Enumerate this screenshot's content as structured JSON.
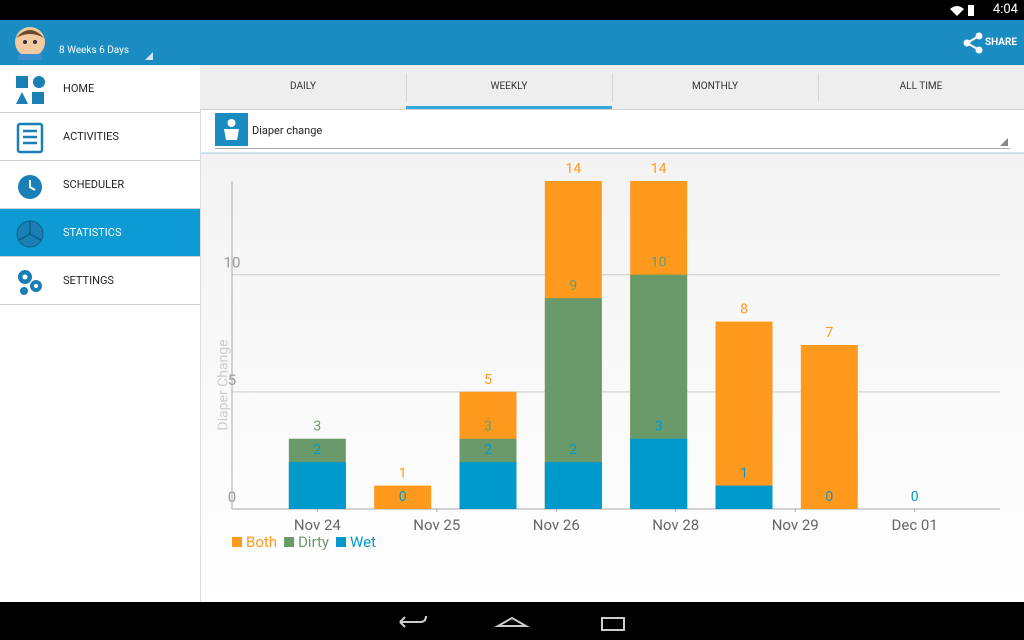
{
  "status_bar": {
    "time": "4:04"
  },
  "action_bar": {
    "subtitle": "8 Weeks 6 Days",
    "share": "SHARE"
  },
  "menu": {
    "items": [
      "HOME",
      "ACTIVITIES",
      "SCHEDULER",
      "STATISTICS",
      "SETTINGS"
    ],
    "selected": 3
  },
  "tabs": {
    "items": [
      "DAILY",
      "WEEKLY",
      "MONTHLY",
      "ALL TIME"
    ],
    "selected": 1
  },
  "dropdown": {
    "label": "Diaper change"
  },
  "chart_data": {
    "type": "bar",
    "y_label": "Diaper Change",
    "x": [
      0,
      1,
      2,
      3,
      4,
      5,
      6,
      7
    ],
    "xlim": [
      -1,
      8
    ],
    "xticks": [
      {
        "value": 0,
        "label": "Nov 24"
      },
      {
        "value": 1.4,
        "label": "Nov 25"
      },
      {
        "value": 2.8,
        "label": "Nov 26"
      },
      {
        "value": 4.2,
        "label": "Nov 28"
      },
      {
        "value": 5.6,
        "label": "Nov 29"
      },
      {
        "value": 7,
        "label": "Dec 01"
      }
    ],
    "ylim": [
      0,
      14
    ],
    "yticks": [
      0,
      5,
      10
    ],
    "grid": true,
    "legend": "bottom-left",
    "series": [
      {
        "name": "Both",
        "color": "#ff9a1e",
        "values": [
          null,
          1,
          5,
          14,
          14,
          8,
          7,
          null
        ]
      },
      {
        "name": "Dirty",
        "color": "#6a9a6a",
        "values": [
          3,
          null,
          3,
          9,
          10,
          null,
          null,
          null
        ]
      },
      {
        "name": "Wet",
        "color": "#0099cc",
        "values": [
          2,
          0,
          2,
          2,
          3,
          1,
          0,
          0
        ]
      }
    ]
  }
}
